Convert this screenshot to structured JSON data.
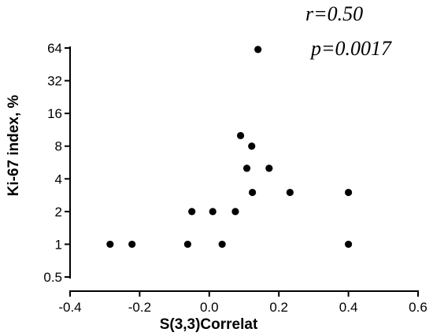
{
  "chart_data": {
    "type": "scatter",
    "xlabel": "S(3,3)Correlat",
    "ylabel": "Ki-67 index, %",
    "xlim": [
      -0.4,
      0.6
    ],
    "ylim": [
      0.5,
      64
    ],
    "y_scale": "log2",
    "x_ticks": [
      "-0.4",
      "-0.2",
      "0.0",
      "0.2",
      "0.4",
      "0.6"
    ],
    "y_ticks": [
      "0.5",
      "1",
      "2",
      "4",
      "8",
      "16",
      "32",
      "64"
    ],
    "annotations": {
      "r": "r=0.50",
      "p": "p=0.0017"
    },
    "grid": false,
    "marker_color": "#000000",
    "points": [
      {
        "x": -0.285,
        "y": 1
      },
      {
        "x": -0.222,
        "y": 1
      },
      {
        "x": -0.062,
        "y": 1
      },
      {
        "x": 0.037,
        "y": 1
      },
      {
        "x": -0.05,
        "y": 2
      },
      {
        "x": 0.01,
        "y": 2
      },
      {
        "x": 0.075,
        "y": 2
      },
      {
        "x": 0.124,
        "y": 3
      },
      {
        "x": 0.232,
        "y": 3
      },
      {
        "x": 0.4,
        "y": 3
      },
      {
        "x": 0.4,
        "y": 1
      },
      {
        "x": 0.108,
        "y": 5
      },
      {
        "x": 0.172,
        "y": 5
      },
      {
        "x": 0.122,
        "y": 8
      },
      {
        "x": 0.09,
        "y": 10
      },
      {
        "x": 0.14,
        "y": 62
      }
    ]
  }
}
